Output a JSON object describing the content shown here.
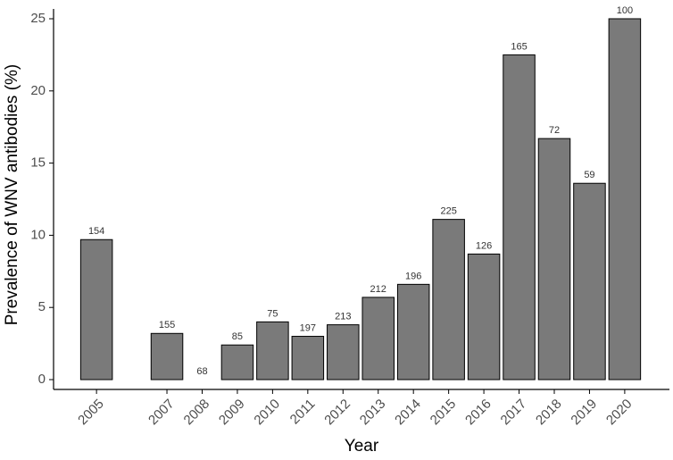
{
  "chart_data": {
    "type": "bar",
    "x_label": "Year",
    "y_label": "Prevalence of WNV antibodies (%)",
    "x": [
      2005,
      2007,
      2008,
      2009,
      2010,
      2011,
      2012,
      2013,
      2014,
      2015,
      2016,
      2017,
      2018,
      2019,
      2020
    ],
    "values": [
      9.7,
      3.2,
      0,
      2.4,
      4.0,
      3.0,
      3.8,
      5.7,
      6.6,
      11.1,
      8.7,
      22.5,
      16.7,
      13.6,
      25.0
    ],
    "annotations": [
      154,
      155,
      68,
      85,
      75,
      197,
      213,
      212,
      196,
      225,
      126,
      165,
      72,
      59,
      100
    ],
    "color": "#7a7a7a",
    "xlim": [
      2003.78,
      2021.27
    ],
    "xticks": [
      2005,
      2007,
      2008,
      2009,
      2010,
      2011,
      2012,
      2013,
      2014,
      2015,
      2016,
      2017,
      2018,
      2019,
      2020
    ],
    "ylim": [
      -0.68,
      25.68
    ],
    "yticks": [
      0,
      5,
      10,
      15,
      20,
      25
    ],
    "grid": false
  }
}
